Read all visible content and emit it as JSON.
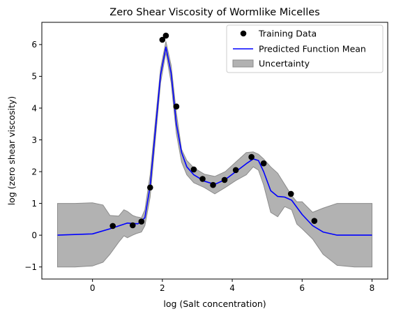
{
  "chart_data": {
    "type": "line",
    "title": "Zero Shear Viscosity of Wormlike Micelles",
    "xlabel": "log (Salt concentration)",
    "ylabel": "log (zero shear viscosity)",
    "xlim": [
      -1.45,
      8.45
    ],
    "ylim": [
      -1.38,
      6.7
    ],
    "xticks": [
      0,
      2,
      4,
      6,
      8
    ],
    "yticks": [
      -1,
      0,
      1,
      2,
      3,
      4,
      5,
      6
    ],
    "xtick_labels": [
      "0",
      "2",
      "4",
      "6",
      "8"
    ],
    "ytick_labels": [
      "−1",
      "0",
      "1",
      "2",
      "3",
      "4",
      "5",
      "6"
    ],
    "grid": false,
    "legend_position": "upper-right",
    "colors": {
      "mean": "#0000ff",
      "uncertainty": "#b2b2b2",
      "uncertainty_edge": "#8c8c8c",
      "points": "#000000"
    },
    "series": [
      {
        "name": "Training Data",
        "kind": "scatter",
        "x": [
          0.58,
          1.15,
          1.4,
          1.65,
          2.0,
          2.1,
          2.4,
          2.9,
          3.15,
          3.45,
          3.78,
          4.1,
          4.55,
          4.9,
          5.68,
          6.35
        ],
        "y": [
          0.29,
          0.31,
          0.43,
          1.5,
          6.15,
          6.28,
          4.05,
          2.07,
          1.77,
          1.58,
          1.74,
          2.05,
          2.46,
          2.26,
          1.3,
          0.45
        ]
      },
      {
        "name": "Predicted Function Mean",
        "kind": "line",
        "x": [
          -1.0,
          0.0,
          0.5,
          1.0,
          1.3,
          1.5,
          1.65,
          1.8,
          1.95,
          2.1,
          2.25,
          2.4,
          2.55,
          2.7,
          2.9,
          3.2,
          3.5,
          3.8,
          4.1,
          4.4,
          4.6,
          4.75,
          4.9,
          5.1,
          5.3,
          5.5,
          5.7,
          6.0,
          6.3,
          6.6,
          7.0,
          7.5,
          8.0
        ],
        "y": [
          0.0,
          0.04,
          0.2,
          0.38,
          0.36,
          0.55,
          1.55,
          3.3,
          5.05,
          5.92,
          5.1,
          3.5,
          2.6,
          2.15,
          1.9,
          1.7,
          1.6,
          1.75,
          2.0,
          2.25,
          2.4,
          2.35,
          2.0,
          1.4,
          1.22,
          1.2,
          1.1,
          0.65,
          0.3,
          0.1,
          0.0,
          0.0,
          0.0
        ]
      },
      {
        "name": "Uncertainty",
        "kind": "band",
        "x": [
          -1.0,
          -0.5,
          0.0,
          0.3,
          0.5,
          0.75,
          0.9,
          1.0,
          1.15,
          1.25,
          1.4,
          1.5,
          1.65,
          1.8,
          1.95,
          2.1,
          2.25,
          2.4,
          2.55,
          2.7,
          2.9,
          3.2,
          3.5,
          3.8,
          4.1,
          4.4,
          4.6,
          4.75,
          4.9,
          5.1,
          5.3,
          5.5,
          5.7,
          5.85,
          6.0,
          6.3,
          6.6,
          7.0,
          7.5,
          8.0
        ],
        "upper": [
          1.0,
          1.0,
          1.02,
          0.95,
          0.62,
          0.6,
          0.8,
          0.75,
          0.62,
          0.58,
          0.55,
          0.8,
          1.9,
          3.6,
          5.25,
          6.1,
          5.35,
          3.85,
          2.7,
          2.35,
          2.12,
          1.92,
          1.85,
          2.0,
          2.3,
          2.6,
          2.62,
          2.55,
          2.4,
          2.15,
          1.95,
          1.6,
          1.25,
          1.05,
          1.05,
          0.72,
          0.85,
          1.0,
          1.0,
          1.0
        ],
        "lower": [
          -1.0,
          -1.0,
          -0.97,
          -0.85,
          -0.6,
          -0.22,
          -0.02,
          -0.08,
          0.0,
          0.05,
          0.1,
          0.3,
          1.2,
          3.0,
          4.8,
          5.75,
          4.8,
          3.2,
          2.3,
          1.9,
          1.65,
          1.5,
          1.3,
          1.5,
          1.72,
          1.9,
          2.15,
          2.05,
          1.58,
          0.72,
          0.58,
          0.9,
          0.8,
          0.35,
          0.2,
          -0.12,
          -0.6,
          -0.95,
          -1.0,
          -1.0
        ]
      }
    ]
  }
}
